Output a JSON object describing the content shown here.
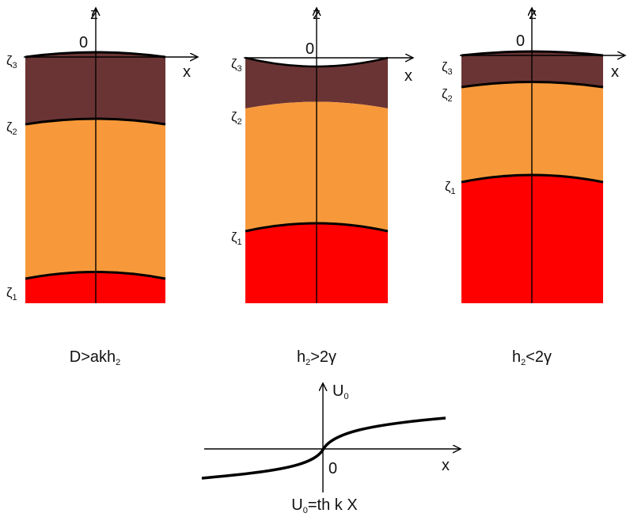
{
  "panels": [
    {
      "axis": {
        "z": "z",
        "origin": "0",
        "x": "x"
      },
      "levels": [
        {
          "symbol": "ζ",
          "sub": "3"
        },
        {
          "symbol": "ζ",
          "sub": "2"
        },
        {
          "symbol": "ζ",
          "sub": "1"
        }
      ],
      "caption": {
        "pre": "D>akh",
        "sub": "2",
        "post": ""
      }
    },
    {
      "axis": {
        "z": "z",
        "origin": "0",
        "x": "x"
      },
      "levels": [
        {
          "symbol": "ζ",
          "sub": "3"
        },
        {
          "symbol": "ζ",
          "sub": "2"
        },
        {
          "symbol": "ζ",
          "sub": "1"
        }
      ],
      "caption": {
        "pre": "h",
        "sub": "2",
        "post": ">2γ"
      }
    },
    {
      "axis": {
        "z": "z",
        "origin": "0",
        "x": "x"
      },
      "levels": [
        {
          "symbol": "ζ",
          "sub": "3"
        },
        {
          "symbol": "ζ",
          "sub": "2"
        },
        {
          "symbol": "ζ",
          "sub": "1"
        }
      ],
      "caption": {
        "pre": "h",
        "sub": "2",
        "post": "<2γ"
      }
    }
  ],
  "graph": {
    "y_axis": {
      "symbol": "U",
      "sub": "0"
    },
    "origin": "0",
    "x_axis": "x",
    "formula": {
      "symbol": "U",
      "sub": "0",
      "rest": "=th k X"
    }
  }
}
